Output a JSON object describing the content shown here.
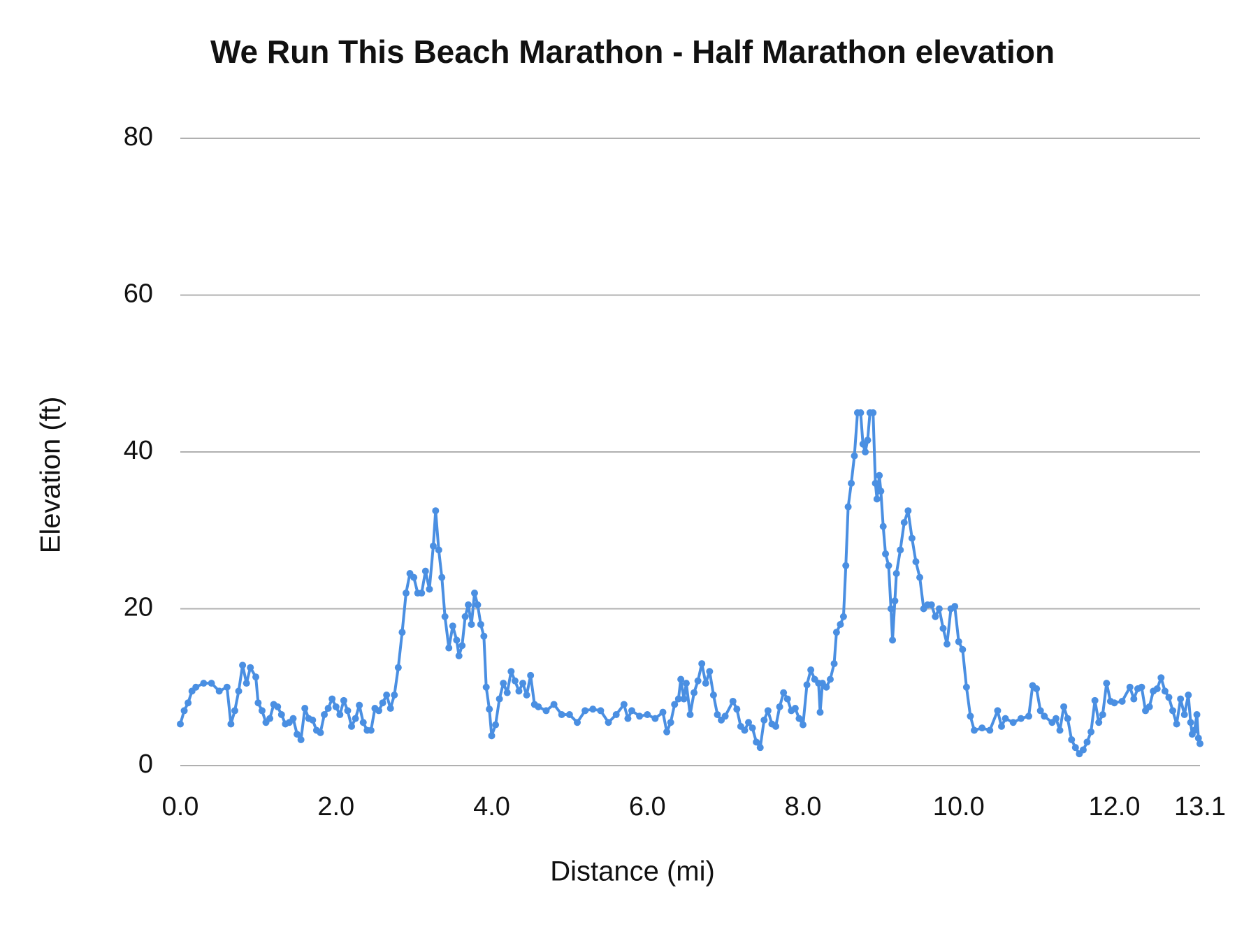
{
  "chart_data": {
    "type": "line",
    "title": "We Run This Beach Marathon - Half Marathon elevation",
    "x_label": "Distance (mi)",
    "y_label": "Elevation (ft)",
    "color": "#4a8fe2",
    "grid": true,
    "markers": true,
    "xlim": [
      0,
      13.1
    ],
    "ylim": [
      0,
      80
    ],
    "xticks": [
      {
        "value": 0,
        "label": "0.0"
      },
      {
        "value": 2,
        "label": "2.0"
      },
      {
        "value": 4,
        "label": "4.0"
      },
      {
        "value": 6,
        "label": "6.0"
      },
      {
        "value": 8,
        "label": "8.0"
      },
      {
        "value": 10,
        "label": "10.0"
      },
      {
        "value": 12,
        "label": "12.0"
      },
      13.1
    ],
    "yticks": [
      0,
      20,
      40,
      60,
      80
    ],
    "x": [
      0.0,
      0.05,
      0.1,
      0.15,
      0.2,
      0.3,
      0.4,
      0.5,
      0.6,
      0.65,
      0.7,
      0.75,
      0.8,
      0.85,
      0.9,
      0.97,
      1.0,
      1.05,
      1.1,
      1.15,
      1.2,
      1.25,
      1.3,
      1.35,
      1.4,
      1.45,
      1.5,
      1.55,
      1.6,
      1.65,
      1.7,
      1.75,
      1.8,
      1.85,
      1.9,
      1.95,
      2.0,
      2.05,
      2.1,
      2.15,
      2.2,
      2.25,
      2.3,
      2.35,
      2.4,
      2.45,
      2.5,
      2.55,
      2.6,
      2.65,
      2.7,
      2.75,
      2.8,
      2.85,
      2.9,
      2.95,
      3.0,
      3.05,
      3.1,
      3.15,
      3.2,
      3.25,
      3.28,
      3.32,
      3.36,
      3.4,
      3.45,
      3.5,
      3.55,
      3.58,
      3.62,
      3.66,
      3.7,
      3.74,
      3.78,
      3.82,
      3.86,
      3.9,
      3.93,
      3.97,
      4.0,
      4.05,
      4.1,
      4.15,
      4.2,
      4.25,
      4.3,
      4.35,
      4.4,
      4.45,
      4.5,
      4.55,
      4.6,
      4.7,
      4.8,
      4.9,
      5.0,
      5.1,
      5.2,
      5.3,
      5.4,
      5.5,
      5.6,
      5.7,
      5.75,
      5.8,
      5.9,
      6.0,
      6.1,
      6.2,
      6.25,
      6.3,
      6.35,
      6.4,
      6.43,
      6.47,
      6.5,
      6.55,
      6.6,
      6.65,
      6.7,
      6.75,
      6.8,
      6.85,
      6.9,
      6.95,
      7.0,
      7.1,
      7.15,
      7.2,
      7.25,
      7.3,
      7.35,
      7.4,
      7.45,
      7.5,
      7.55,
      7.6,
      7.65,
      7.7,
      7.75,
      7.8,
      7.85,
      7.9,
      7.95,
      8.0,
      8.05,
      8.1,
      8.15,
      8.2,
      8.22,
      8.25,
      8.3,
      8.35,
      8.4,
      8.43,
      8.48,
      8.52,
      8.55,
      8.58,
      8.62,
      8.66,
      8.7,
      8.74,
      8.77,
      8.8,
      8.83,
      8.86,
      8.9,
      8.93,
      8.95,
      8.98,
      9.0,
      9.03,
      9.06,
      9.1,
      9.13,
      9.15,
      9.18,
      9.2,
      9.25,
      9.3,
      9.35,
      9.4,
      9.45,
      9.5,
      9.55,
      9.6,
      9.65,
      9.7,
      9.75,
      9.8,
      9.85,
      9.9,
      9.95,
      10.0,
      10.05,
      10.1,
      10.15,
      10.2,
      10.3,
      10.4,
      10.5,
      10.55,
      10.6,
      10.7,
      10.8,
      10.9,
      10.95,
      11.0,
      11.05,
      11.1,
      11.2,
      11.25,
      11.3,
      11.35,
      11.4,
      11.45,
      11.5,
      11.55,
      11.6,
      11.65,
      11.7,
      11.75,
      11.8,
      11.85,
      11.9,
      11.95,
      12.0,
      12.1,
      12.2,
      12.25,
      12.3,
      12.35,
      12.4,
      12.45,
      12.5,
      12.55,
      12.6,
      12.65,
      12.7,
      12.75,
      12.8,
      12.85,
      12.9,
      12.95,
      12.98,
      13.0,
      13.03,
      13.06,
      13.08,
      13.1
    ],
    "values": [
      5.3,
      7,
      8,
      9.5,
      10,
      10.5,
      10.5,
      9.5,
      10,
      5.3,
      7,
      9.5,
      12.8,
      10.5,
      12.5,
      11.3,
      8,
      7,
      5.5,
      6,
      7.8,
      7.5,
      6.5,
      5.3,
      5.5,
      6,
      4,
      3.3,
      7.3,
      6,
      5.8,
      4.5,
      4.2,
      6.5,
      7.3,
      8.5,
      7.5,
      6.5,
      8.3,
      7,
      5,
      6,
      7.7,
      5.5,
      4.5,
      4.5,
      7.3,
      7,
      8,
      9,
      7.3,
      9,
      12.5,
      17,
      22,
      24.5,
      24,
      22,
      22,
      24.8,
      22.5,
      28,
      32.5,
      27.5,
      24,
      19,
      15,
      17.8,
      16,
      14,
      15.3,
      19,
      20.5,
      18,
      22,
      20.5,
      18,
      16.5,
      10,
      7.2,
      3.8,
      5.2,
      8.5,
      10.5,
      9.3,
      12,
      10.8,
      9.5,
      10.5,
      9,
      11.5,
      7.8,
      7.5,
      7,
      7.8,
      6.5,
      6.5,
      5.5,
      7,
      7.2,
      7,
      5.5,
      6.5,
      7.8,
      6,
      7,
      6.3,
      6.5,
      6,
      6.8,
      4.3,
      5.5,
      7.8,
      8.5,
      11,
      8.5,
      10.5,
      6.5,
      9.3,
      10.8,
      13,
      10.5,
      12,
      9,
      6.5,
      5.8,
      6.3,
      8.2,
      7.2,
      5,
      4.5,
      5.5,
      4.8,
      3,
      2.3,
      5.8,
      7,
      5.3,
      5,
      7.5,
      9.3,
      8.5,
      7,
      7.3,
      6,
      5.2,
      10.3,
      12.2,
      11,
      10.5,
      6.8,
      10.5,
      10,
      11,
      13,
      17,
      18,
      19,
      25.5,
      33,
      36,
      39.5,
      45,
      45,
      41,
      40,
      41.5,
      45,
      45,
      36,
      34,
      37,
      35,
      30.5,
      27,
      25.5,
      20,
      16,
      21,
      24.5,
      27.5,
      31,
      32.5,
      29,
      26,
      24,
      20,
      20.5,
      20.5,
      19,
      20,
      17.5,
      15.5,
      20,
      20.3,
      15.8,
      14.8,
      10,
      6.3,
      4.5,
      4.8,
      4.5,
      7,
      5,
      6,
      5.5,
      6,
      6.3,
      10.2,
      9.8,
      7,
      6.3,
      5.5,
      6,
      4.5,
      7.5,
      6,
      3.3,
      2.3,
      1.5,
      2,
      3,
      4.3,
      8.3,
      5.5,
      6.5,
      10.5,
      8.2,
      8,
      8.2,
      10,
      8.5,
      9.8,
      10,
      7,
      7.5,
      9.5,
      9.8,
      11.2,
      9.5,
      8.7,
      7,
      5.3,
      8.5,
      6.5,
      9,
      5.5,
      4,
      4.5,
      6.5,
      3.5,
      2.8
    ]
  }
}
